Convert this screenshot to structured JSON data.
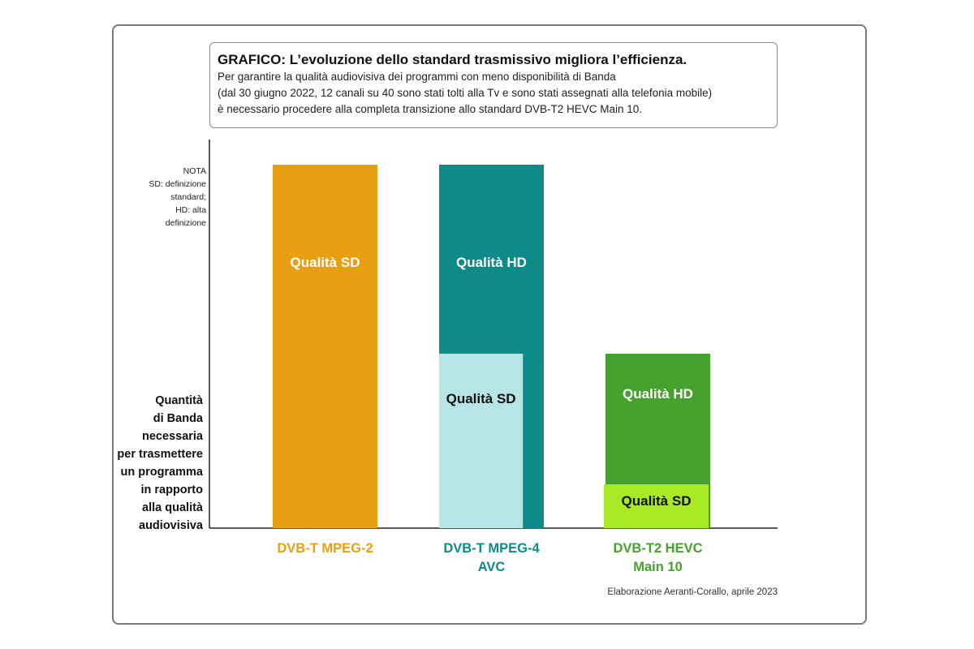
{
  "title": {
    "main": "GRAFICO: L’evoluzione dello standard trasmissivo migliora l’efficienza.",
    "lines": [
      "Per garantire la qualità audiovisiva dei programmi con meno disponibilità di Banda",
      "(dal 30 giugno 2022, 12 canali su 40 sono stati tolti alla Tv e sono stati assegnati alla telefonia mobile)",
      "è necessario procedere alla completa transizione allo standard DVB-T2 HEVC Main 10."
    ]
  },
  "nota": [
    "NOTA",
    "SD: definizione",
    "standard;",
    "HD: alta",
    "definizione"
  ],
  "ylabel_lines": [
    "Quantità",
    "di Banda",
    "necessaria",
    "per trasmettere",
    "un programma",
    "in rapporto",
    "alla qualità",
    "audiovisiva"
  ],
  "source": "Elaborazione Aeranti-Corallo, aprile 2023",
  "chart_data": {
    "type": "bar",
    "ylim": [
      0,
      100
    ],
    "grid": false,
    "legend": "none",
    "ylabel": "Quantità di Banda necessaria per trasmettere un programma in rapporto alla qualità audiovisiva",
    "categories": [
      {
        "label_lines": [
          "DVB-T MPEG-2"
        ],
        "color": "#e8a012",
        "bars": [
          {
            "label": "Qualità SD",
            "value": 100,
            "color": "#e8a012",
            "text_color": "#ffffff",
            "offset": 0
          }
        ]
      },
      {
        "label_lines": [
          "DVB-T MPEG-4",
          "AVC"
        ],
        "color": "#0e8a89",
        "bars": [
          {
            "label": "Qualità HD",
            "value": 100,
            "color": "#0e8a89",
            "text_color": "#ffffff",
            "offset": 0
          },
          {
            "label": "Qualità SD",
            "value": 48,
            "color": "#b7e5e5",
            "text_color": "#111111",
            "offset": -0.2
          }
        ]
      },
      {
        "label_lines": [
          "DVB-T2 HEVC",
          "Main 10"
        ],
        "color": "#46a12e",
        "bars": [
          {
            "label": "Qualità HD",
            "value": 48,
            "color": "#46a12e",
            "text_color": "#ffffff",
            "offset": 0
          },
          {
            "label": "Qualità SD",
            "value": 11,
            "color": "#a8ea26",
            "text_color": "#111111",
            "offset": 0
          }
        ]
      }
    ]
  }
}
